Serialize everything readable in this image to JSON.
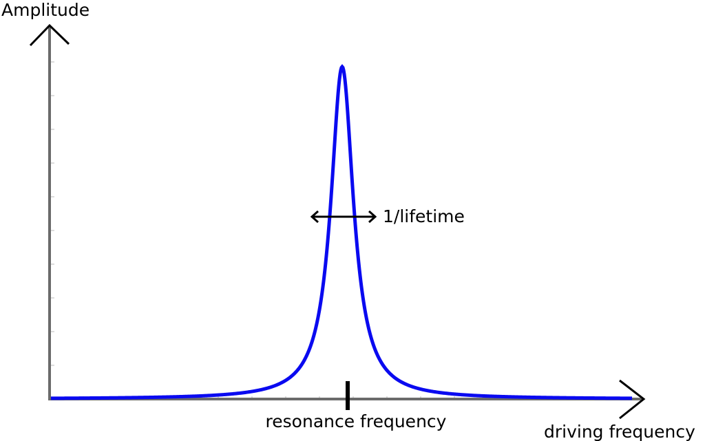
{
  "labels": {
    "y_axis": "Amplitude",
    "width": "1/lifetime",
    "resonance": "resonance frequency",
    "x_axis": "driving frequency"
  }
}
